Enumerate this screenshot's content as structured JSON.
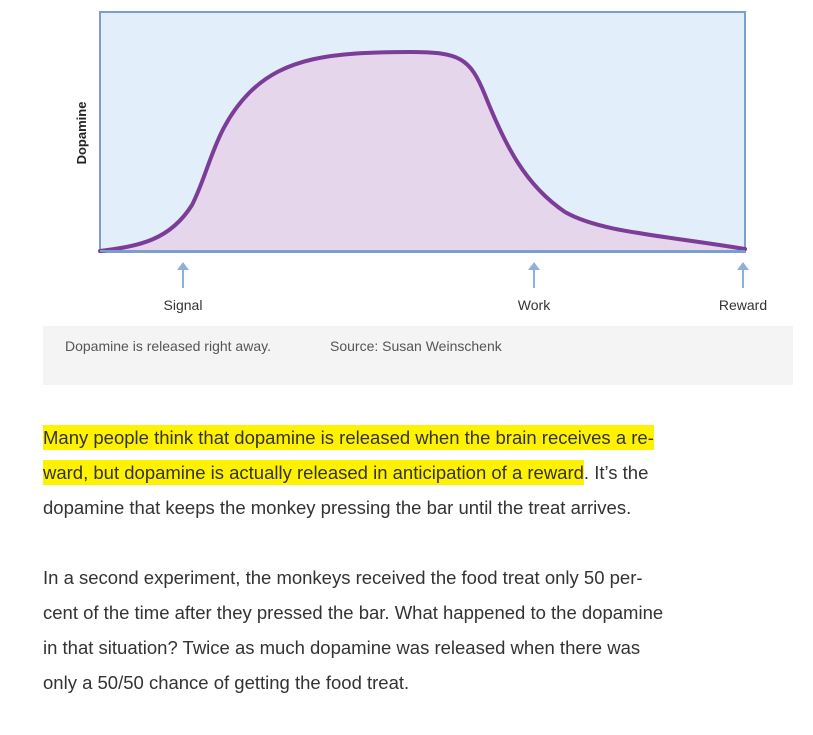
{
  "chart_data": {
    "type": "area",
    "ylabel": "Dopamine",
    "xlabel": "",
    "markers": [
      "Signal",
      "Work",
      "Reward"
    ],
    "colors": {
      "plot_bg": "#e2eef9",
      "frame": "#7b9dd0",
      "fill": "#e6d6ec",
      "curve": "#7b3d98",
      "arrow": "#8fb0de"
    }
  },
  "caption": {
    "text": "Dopamine is released right away.",
    "source": "Source: Susan Weinschenk"
  },
  "article": {
    "p1": {
      "l1_hl": "Many people think that dopamine is released when the brain receives a re-",
      "l2_hl": "ward, but dopamine is actually released in anticipation of a reward",
      "l2_rest": ". It’s the",
      "l3": "dopamine that keeps the monkey pressing the bar until the treat arrives."
    },
    "p2": {
      "l1": "In a second experiment, the monkeys received the food treat only 50 per-",
      "l2": "cent of the time after they pressed the bar. What happened to the dopamine",
      "l3": "in that situation? Twice as much dopamine was released when there was",
      "l4": "only a 50/50 chance of getting the food treat."
    },
    "highlight_color": "#fff200"
  }
}
